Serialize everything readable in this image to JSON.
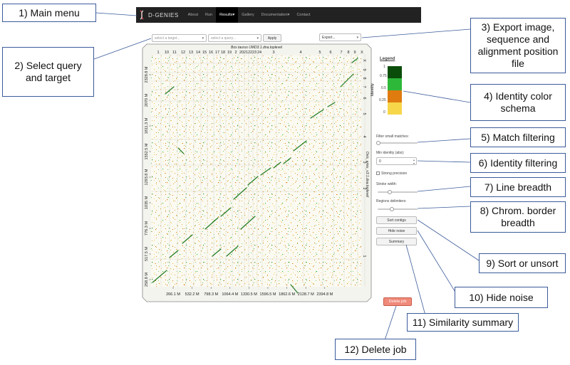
{
  "callouts": {
    "c1": "1) Main menu",
    "c2": "2) Select query and target",
    "c3": "3) Export image, sequence and alignment position file",
    "c4": "4) Identity color schema",
    "c5": "5) Match filtering",
    "c6": "6) Identity filtering",
    "c7": "7) Line breadth",
    "c8": "8) Chrom. border breadth",
    "c9": "9) Sort or unsort",
    "c10": "10) Hide noise",
    "c11": "11) Similarity summary",
    "c12": "12) Delete job"
  },
  "navbar": {
    "brand": "D-GENIES",
    "items": [
      "About",
      "Run",
      "Results▾",
      "Gallery",
      "Documentation▾",
      "Contact"
    ],
    "active_index": 2
  },
  "toolbar": {
    "target_placeholder": "select a target...",
    "query_placeholder": "select a query...",
    "apply_label": "Apply",
    "export_label": "Export..."
  },
  "plot": {
    "title": "Bos taurus UMD3.1.dna.toplevel",
    "top_ticks": [
      "1",
      "10",
      "11",
      "12",
      "13",
      "14",
      "15",
      "16",
      "17",
      "18",
      "19",
      "2",
      "20",
      "21",
      "22",
      "23",
      "24",
      "3",
      "4",
      "5",
      "6",
      "7",
      "8",
      "9",
      "X"
    ],
    "bottom_ticks": [
      "266.1 M",
      "532.2 M",
      "798.3 M",
      "1064.4 M",
      "1330.5 M",
      "1596.5 M",
      "1862.6 M",
      "2128.7 M",
      "2394.8 M"
    ],
    "left_ticks": [
      "2328.8 M",
      "2070 M",
      "1811.3 M",
      "1552.5 M",
      "1293.8 M",
      "1035 M",
      "776.3 M",
      "517.5 M",
      "258.8 M"
    ],
    "right_ticks": [
      "X",
      "9",
      "8",
      "7",
      "6",
      "5",
      "4",
      "3",
      "2",
      "1"
    ],
    "right_axis_label": "Ovis_aries_v3.1.dna.toplevel"
  },
  "legend": {
    "title": "Legend",
    "axis_label": "Identity",
    "levels": [
      "1",
      "0.75",
      "0.5",
      "0.25",
      "0"
    ],
    "colors": [
      "#0a4d0a",
      "#2eb83a",
      "#e07b10",
      "#f7d64a"
    ]
  },
  "sidebar": {
    "filter_label": "Filter small matches:",
    "min_identity_label": "Min identity (abs):",
    "min_identity_value": "0",
    "strong_precision_label": "Strong precision",
    "stroke_label": "Stroke width:",
    "regions_label": "Regions delimiters:",
    "sort_label": "Sort contigs",
    "hide_noise_label": "Hide noise",
    "summary_label": "Summary",
    "delete_label": "Delete job"
  }
}
